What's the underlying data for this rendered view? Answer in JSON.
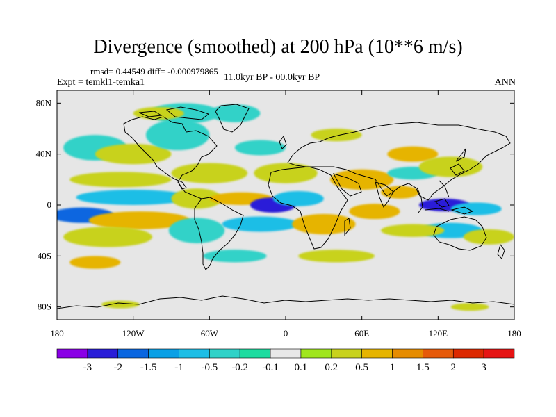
{
  "title": "Divergence (smoothed) at 200 hPa (10**6 m/s)",
  "stats_line": "rmsd= 0.44549 diff= -0.000979865",
  "experiment": "Expt = temkl1-temka1",
  "period": "11.0kyr BP - 00.0kyr BP",
  "season": "ANN",
  "map": {
    "projection": "cylindrical-equidistant",
    "lon_range": [
      -180,
      180
    ],
    "lat_range": [
      -90,
      90
    ],
    "x_ticks": [
      {
        "lon": -180,
        "label": "180"
      },
      {
        "lon": -120,
        "label": "120W"
      },
      {
        "lon": -60,
        "label": "60W"
      },
      {
        "lon": 0,
        "label": "0"
      },
      {
        "lon": 60,
        "label": "60E"
      },
      {
        "lon": 120,
        "label": "120E"
      },
      {
        "lon": 180,
        "label": "180"
      }
    ],
    "y_ticks": [
      {
        "lat": 80,
        "label": "80N"
      },
      {
        "lat": 40,
        "label": "40N"
      },
      {
        "lat": 0,
        "label": "0"
      },
      {
        "lat": -40,
        "label": "40S"
      },
      {
        "lat": -80,
        "label": "80S"
      }
    ],
    "background_color": "#e6e6e6",
    "coastline_color": "#000000"
  },
  "colorbar": {
    "labels": [
      "-3",
      "-2",
      "-1.5",
      "-1",
      "-0.5",
      "-0.2",
      "-0.1",
      "0.1",
      "0.2",
      "0.5",
      "1",
      "1.5",
      "2",
      "3"
    ],
    "colors": [
      "#8a00e6",
      "#2a1ed8",
      "#0a66e0",
      "#0aa0e6",
      "#1ebee6",
      "#30d2c8",
      "#1edca0",
      "#e8e8e8",
      "#a0e61e",
      "#c8d21e",
      "#e6b400",
      "#e68c00",
      "#e65a0a",
      "#dc2800",
      "#e61414"
    ]
  },
  "anomaly_blobs": [
    {
      "lon": -160,
      "lat": -8,
      "rlon": 25,
      "rlat": 6,
      "value": -1.5
    },
    {
      "lon": -115,
      "lat": -12,
      "rlon": 40,
      "rlat": 7,
      "value": 0.7
    },
    {
      "lon": -120,
      "lat": 6,
      "rlon": 45,
      "rlat": 6,
      "value": -0.6
    },
    {
      "lon": -140,
      "lat": -25,
      "rlon": 35,
      "rlat": 8,
      "value": 0.4
    },
    {
      "lon": -130,
      "lat": 20,
      "rlon": 40,
      "rlat": 6,
      "value": 0.3
    },
    {
      "lon": -150,
      "lat": 45,
      "rlon": 25,
      "rlat": 10,
      "value": -0.4
    },
    {
      "lon": -120,
      "lat": 40,
      "rlon": 30,
      "rlat": 8,
      "value": 0.3
    },
    {
      "lon": -85,
      "lat": 55,
      "rlon": 25,
      "rlat": 12,
      "value": -0.3
    },
    {
      "lon": -80,
      "lat": 72,
      "rlon": 28,
      "rlat": 8,
      "value": -0.4
    },
    {
      "lon": -100,
      "lat": 72,
      "rlon": 20,
      "rlat": 5,
      "value": 0.3
    },
    {
      "lon": -40,
      "lat": 72,
      "rlon": 20,
      "rlat": 7,
      "value": -0.3
    },
    {
      "lon": -60,
      "lat": 25,
      "rlon": 30,
      "rlat": 8,
      "value": 0.5
    },
    {
      "lon": -70,
      "lat": 5,
      "rlon": 20,
      "rlat": 8,
      "value": 0.4
    },
    {
      "lon": -35,
      "lat": 5,
      "rlon": 25,
      "rlat": 5,
      "value": 1.0
    },
    {
      "lon": -10,
      "lat": 0,
      "rlon": 18,
      "rlat": 6,
      "value": -2.2
    },
    {
      "lon": 10,
      "lat": 5,
      "rlon": 20,
      "rlat": 6,
      "value": -0.8
    },
    {
      "lon": -20,
      "lat": -15,
      "rlon": 30,
      "rlat": 6,
      "value": -0.5
    },
    {
      "lon": -70,
      "lat": -20,
      "rlon": 22,
      "rlat": 10,
      "value": -0.4
    },
    {
      "lon": 0,
      "lat": 25,
      "rlon": 25,
      "rlat": 8,
      "value": 0.5
    },
    {
      "lon": 60,
      "lat": 20,
      "rlon": 25,
      "rlat": 8,
      "value": 0.6
    },
    {
      "lon": 30,
      "lat": -15,
      "rlon": 25,
      "rlat": 8,
      "value": 0.6
    },
    {
      "lon": 70,
      "lat": -5,
      "rlon": 20,
      "rlat": 6,
      "value": 0.8
    },
    {
      "lon": 90,
      "lat": 10,
      "rlon": 15,
      "rlat": 5,
      "value": 1.0
    },
    {
      "lon": 100,
      "lat": 40,
      "rlon": 20,
      "rlat": 6,
      "value": 0.6
    },
    {
      "lon": 100,
      "lat": 25,
      "rlon": 20,
      "rlat": 5,
      "value": -0.4
    },
    {
      "lon": 125,
      "lat": 0,
      "rlon": 20,
      "rlat": 5,
      "value": -2.5
    },
    {
      "lon": 150,
      "lat": -3,
      "rlon": 20,
      "rlat": 5,
      "value": -0.8
    },
    {
      "lon": 130,
      "lat": 30,
      "rlon": 25,
      "rlat": 8,
      "value": 0.5
    },
    {
      "lon": 130,
      "lat": -20,
      "rlon": 25,
      "rlat": 6,
      "value": -0.5
    },
    {
      "lon": 160,
      "lat": -25,
      "rlon": 20,
      "rlat": 6,
      "value": 0.5
    },
    {
      "lon": 100,
      "lat": -20,
      "rlon": 25,
      "rlat": 5,
      "value": 0.3
    },
    {
      "lon": 40,
      "lat": -40,
      "rlon": 30,
      "rlat": 5,
      "value": 0.3
    },
    {
      "lon": -40,
      "lat": -40,
      "rlon": 25,
      "rlat": 5,
      "value": -0.3
    },
    {
      "lon": -20,
      "lat": 45,
      "rlon": 20,
      "rlat": 6,
      "value": -0.3
    },
    {
      "lon": 40,
      "lat": 55,
      "rlon": 20,
      "rlat": 5,
      "value": 0.3
    },
    {
      "lon": -150,
      "lat": -45,
      "rlon": 20,
      "rlat": 5,
      "value": 0.8
    },
    {
      "lon": -130,
      "lat": -78,
      "rlon": 15,
      "rlat": 3,
      "value": 0.3
    },
    {
      "lon": 145,
      "lat": -80,
      "rlon": 15,
      "rlat": 3,
      "value": 0.3
    }
  ]
}
